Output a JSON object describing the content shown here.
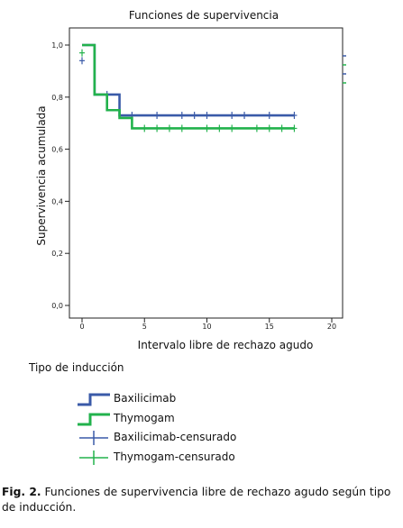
{
  "chart_data": {
    "type": "line",
    "title": "Funciones de supervivencia",
    "xlabel": "Intervalo libre de rechazo agudo",
    "ylabel": "Supervivencia acumulada",
    "xlim": [
      0,
      20
    ],
    "ylim": [
      0,
      1
    ],
    "x_ticks": [
      "0",
      "5",
      "10",
      "15",
      "20"
    ],
    "y_ticks": [
      "0,0",
      "0,2",
      "0,4",
      "0,6",
      "0,8",
      "1,0"
    ],
    "grid": false,
    "legend_title": "Tipo de inducción",
    "legend_placement": "bottom-left",
    "series": [
      {
        "name": "Baxilicimab",
        "color": "#3a5aa8",
        "steps": [
          [
            0,
            1.0
          ],
          [
            1,
            0.81
          ],
          [
            3,
            0.73
          ],
          [
            17,
            0.73
          ]
        ],
        "censored": [
          [
            0,
            0.94
          ],
          [
            2,
            0.81
          ],
          [
            4,
            0.73
          ],
          [
            6,
            0.73
          ],
          [
            8,
            0.73
          ],
          [
            9,
            0.73
          ],
          [
            10,
            0.73
          ],
          [
            12,
            0.73
          ],
          [
            13,
            0.73
          ],
          [
            15,
            0.73
          ],
          [
            17,
            0.73
          ]
        ]
      },
      {
        "name": "Thymogam",
        "color": "#22b24c",
        "steps": [
          [
            0,
            1.0
          ],
          [
            1,
            0.81
          ],
          [
            2,
            0.75
          ],
          [
            3,
            0.72
          ],
          [
            4,
            0.68
          ],
          [
            17,
            0.68
          ]
        ],
        "censored": [
          [
            0,
            0.97
          ],
          [
            5,
            0.68
          ],
          [
            6,
            0.68
          ],
          [
            7,
            0.68
          ],
          [
            8,
            0.68
          ],
          [
            10,
            0.68
          ],
          [
            11,
            0.68
          ],
          [
            12,
            0.68
          ],
          [
            14,
            0.68
          ],
          [
            15,
            0.68
          ],
          [
            16,
            0.68
          ],
          [
            17,
            0.68
          ]
        ]
      }
    ]
  },
  "legend": {
    "title": "Tipo de inducción",
    "items": [
      {
        "label": "Baxilicimab",
        "kind": "step",
        "color": "#3a5aa8"
      },
      {
        "label": "Thymogam",
        "kind": "step",
        "color": "#22b24c"
      },
      {
        "label": "Baxilicimab-censurado",
        "kind": "cross",
        "color": "#3a5aa8"
      },
      {
        "label": "Thymogam-censurado",
        "kind": "cross",
        "color": "#22b24c"
      }
    ]
  },
  "caption": {
    "label": "Fig. 2.",
    "text": " Funciones de supervivencia libre de rechazo agudo según tipo de inducción."
  }
}
